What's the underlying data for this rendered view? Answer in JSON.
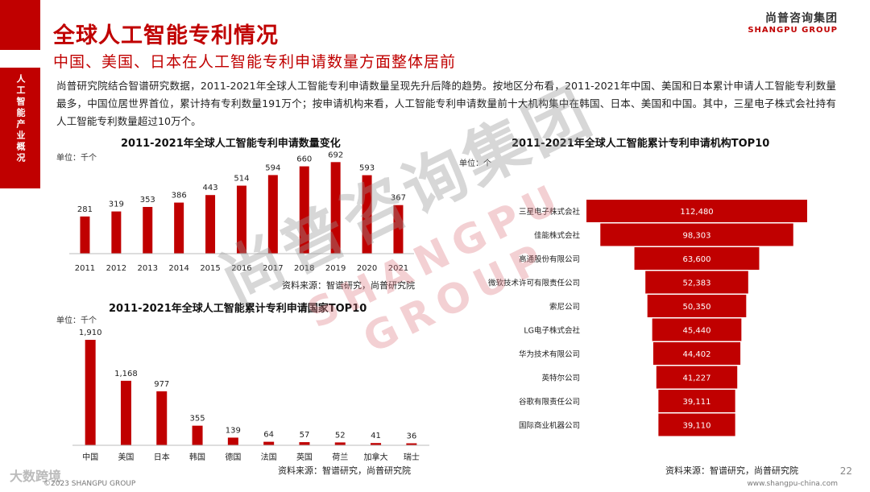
{
  "header": {
    "title": "全球人工智能专利情况",
    "subtitle": "中国、美国、日本在人工智能专利申请数量方面整体居前",
    "side_tab": "人工智能产业概况",
    "brand_cn": "尚普咨询集团",
    "brand_en": "SHANGPU GROUP"
  },
  "intro": "尚普研究院结合智谱研究数据，2011-2021年全球人工智能专利申请数量呈现先升后降的趋势。按地区分布看，2011-2021年中国、美国和日本累计申请人工智能专利数量最多，中国位居世界首位，累计持有专利数量191万个；按申请机构来看，人工智能专利申请数量前十大机构集中在韩国、日本、美国和中国。其中，三星电子株式会社持有人工智能专利数量超过10万个。",
  "watermark": {
    "cn": "尚普咨询集团",
    "en": "SHANGPU GROUP"
  },
  "footer": {
    "logo": "大数跨境",
    "copyright": "©2023 SHANGPU GROUP",
    "url": "www.shangpu-china.com",
    "page": "22"
  },
  "colors": {
    "accent": "#c00000",
    "bar": "#c00000"
  },
  "chart_data": [
    {
      "type": "bar",
      "title": "2011-2021年全球人工智能专利申请数量变化",
      "unit": "单位：千个",
      "source": "资料来源：智谱研究，尚普研究院",
      "categories": [
        "2011",
        "2012",
        "2013",
        "2014",
        "2015",
        "2016",
        "2017",
        "2018",
        "2019",
        "2020",
        "2021"
      ],
      "values": [
        281,
        319,
        353,
        386,
        443,
        514,
        594,
        660,
        692,
        593,
        367
      ],
      "ylim": [
        0,
        700
      ]
    },
    {
      "type": "bar",
      "title": "2011-2021年全球人工智能累计专利申请国家TOP10",
      "unit": "单位：千个",
      "source": "资料来源：智谱研究，尚普研究院",
      "categories": [
        "中国",
        "美国",
        "日本",
        "韩国",
        "德国",
        "法国",
        "英国",
        "荷兰",
        "加拿大",
        "瑞士"
      ],
      "values": [
        1910,
        1168,
        977,
        355,
        139,
        64,
        57,
        52,
        41,
        36
      ],
      "value_labels": [
        "1,910",
        "1,168",
        "977",
        "355",
        "139",
        "64",
        "57",
        "52",
        "41",
        "36"
      ],
      "ylim": [
        0,
        1910
      ]
    },
    {
      "type": "bar",
      "orientation": "horizontal-funnel",
      "title": "2011-2021年全球人工智能累计专利申请机构TOP10",
      "unit": "单位：个",
      "source": "资料来源：智谱研究，尚普研究院",
      "categories": [
        "三星电子株式会社",
        "佳能株式会社",
        "高通股份有限公司",
        "微软技术许可有限责任公司",
        "索尼公司",
        "LG电子株式会社",
        "华为技术有限公司",
        "英特尔公司",
        "谷歌有限责任公司",
        "国际商业机器公司"
      ],
      "values": [
        112480,
        98303,
        63600,
        52383,
        50350,
        45440,
        44402,
        41227,
        39111,
        39110
      ],
      "value_labels": [
        "112,480",
        "98,303",
        "63,600",
        "52,383",
        "50,350",
        "45,440",
        "44,402",
        "41,227",
        "39,111",
        "39,110"
      ],
      "xlim": [
        0,
        112480
      ]
    }
  ]
}
